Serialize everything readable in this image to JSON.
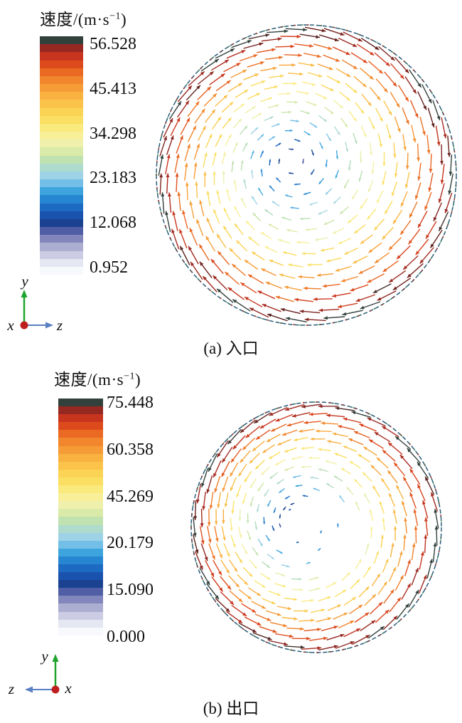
{
  "colormap": {
    "stops": [
      [
        0.0,
        "#f8f9fd"
      ],
      [
        0.04,
        "#e2e4f1"
      ],
      [
        0.085,
        "#c0c1dd"
      ],
      [
        0.125,
        "#9397c4"
      ],
      [
        0.165,
        "#5c64ab"
      ],
      [
        0.205,
        "#1a418f"
      ],
      [
        0.25,
        "#1a57b4"
      ],
      [
        0.295,
        "#1f78cc"
      ],
      [
        0.34,
        "#35a0dd"
      ],
      [
        0.385,
        "#7cc3e8"
      ],
      [
        0.425,
        "#abd9e6"
      ],
      [
        0.465,
        "#b2dcba"
      ],
      [
        0.505,
        "#d2e7a4"
      ],
      [
        0.545,
        "#edf0b0"
      ],
      [
        0.585,
        "#f9ef9a"
      ],
      [
        0.625,
        "#fae878"
      ],
      [
        0.665,
        "#fbdc5c"
      ],
      [
        0.705,
        "#fbcd50"
      ],
      [
        0.745,
        "#fab944"
      ],
      [
        0.785,
        "#f7a138"
      ],
      [
        0.825,
        "#f2882d"
      ],
      [
        0.865,
        "#e96722"
      ],
      [
        0.9,
        "#dc481d"
      ],
      [
        0.93,
        "#c9351f"
      ],
      [
        0.955,
        "#a82b21"
      ],
      [
        0.975,
        "#842521"
      ],
      [
        0.99,
        "#5c1f1c"
      ],
      [
        1.0,
        "#32413c"
      ]
    ]
  },
  "chart_data": [
    {
      "key": "a",
      "type": "scatter",
      "subtype": "quiver-vector-field",
      "title": "(a) 入口",
      "quantity": "速度",
      "colorbar": {
        "title_prefix": "速度/(m·s",
        "title_sup": "−1",
        "title_suffix": ")",
        "ticks": [
          "56.528",
          "45.413",
          "34.298",
          "23.183",
          "12.068",
          "0.952"
        ],
        "tick_values": [
          56.528,
          45.413,
          34.298,
          23.183,
          12.068,
          0.952
        ],
        "min": 0.952,
        "max": 56.528,
        "bands": 30
      },
      "triad": {
        "up_label": "y",
        "horizontal_label": "z",
        "normal_label": "x",
        "horizontal_direction": "right",
        "up_color": "#1fa32c",
        "horizontal_color": "#5b7fc4",
        "origin_color": "#bf1e1e"
      },
      "field": {
        "rotation": "clockwise",
        "center": [
          218,
          218
        ],
        "radius": 211,
        "swirl_offset": [
          -0.11,
          -0.1
        ],
        "spacing": 27,
        "len": [
          7,
          30
        ],
        "tilt": 7,
        "stroke": 1.4,
        "cmap_range": [
          0.2,
          0.995
        ],
        "boundary_colors": [
          "#2a5d78",
          "#8e2b22",
          "#2e7a4d"
        ],
        "rings": [
          {
            "t": 0.08
          },
          {
            "t": 0.15
          },
          {
            "t": 0.22
          },
          {
            "t": 0.29
          },
          {
            "t": 0.36
          },
          {
            "t": 0.43
          },
          {
            "t": 0.5
          },
          {
            "t": 0.57
          },
          {
            "t": 0.64
          },
          {
            "t": 0.71
          },
          {
            "t": 0.78
          },
          {
            "t": 0.85
          },
          {
            "t": 0.92
          },
          {
            "t": 0.97
          }
        ],
        "extras": []
      }
    },
    {
      "key": "b",
      "type": "scatter",
      "subtype": "quiver-vector-field",
      "title": "(b) 出口",
      "quantity": "速度",
      "colorbar": {
        "title_prefix": "速度/(m·s",
        "title_sup": "−1",
        "title_suffix": ")",
        "ticks": [
          "75.448",
          "60.358",
          "45.269",
          "20.179",
          "15.090",
          "0.000"
        ],
        "tick_values": [
          75.448,
          60.358,
          45.269,
          20.179,
          15.09,
          0.0
        ],
        "min": 0.0,
        "max": 75.448,
        "bands": 30
      },
      "triad": {
        "up_label": "y",
        "horizontal_label": "z",
        "normal_label": "x",
        "horizontal_direction": "left",
        "up_color": "#1fa32c",
        "horizontal_color": "#5b7fc4",
        "origin_color": "#bf1e1e"
      },
      "field": {
        "rotation": "counterclockwise",
        "center": [
          180,
          180
        ],
        "radius": 176,
        "swirl_offset": [
          -0.18,
          -0.06
        ],
        "spacing": 24,
        "len": [
          6,
          28
        ],
        "tilt": 6,
        "stroke": 1.4,
        "cmap_range": [
          0.2,
          0.995
        ],
        "boundary_colors": [
          "#2a5d78",
          "#8e2b22",
          "#2e7a4d"
        ],
        "rings": [
          {
            "t": 0.14,
            "start": 165,
            "end": 285
          },
          {
            "t": 0.21,
            "start": 145,
            "end": 305
          },
          {
            "t": 0.29,
            "start": 125,
            "end": 325
          },
          {
            "t": 0.37,
            "start": 100,
            "end": 340
          },
          {
            "t": 0.45,
            "start": 80,
            "end": 360
          },
          {
            "t": 0.53
          },
          {
            "t": 0.61
          },
          {
            "t": 0.69
          },
          {
            "t": 0.76
          },
          {
            "t": 0.83
          },
          {
            "t": 0.9
          },
          {
            "t": 0.97
          }
        ],
        "extras": [
          {
            "t": 0.1,
            "a": 240,
            "c": 0.24
          },
          {
            "t": 0.2,
            "a": 25,
            "c": 0.3
          },
          {
            "t": 0.27,
            "a": 55,
            "c": 0.33
          },
          {
            "t": 0.17,
            "a": 90,
            "c": 0.27
          },
          {
            "t": 0.33,
            "a": 80,
            "c": 0.36
          },
          {
            "t": 0.3,
            "a": 5,
            "c": 0.31
          }
        ]
      }
    }
  ]
}
